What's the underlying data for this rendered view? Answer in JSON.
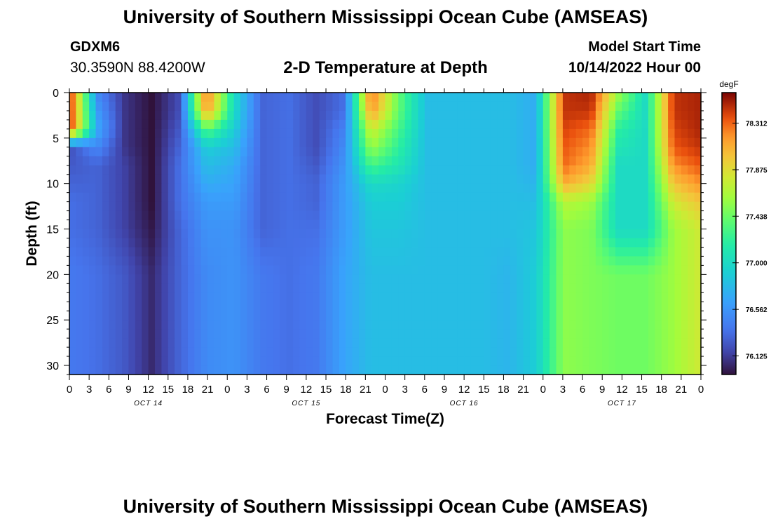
{
  "header": {
    "title": "University of Southern Mississippi Ocean Cube (AMSEAS)",
    "station_id": "GDXM6",
    "station_coords": "30.3590N  88.4200W",
    "subtitle": "2-D Temperature at Depth",
    "model_start_label": "Model Start Time",
    "model_start_value": "10/14/2022 Hour 00"
  },
  "footer": {
    "title_repeat": "University of Southern Mississippi Ocean Cube (AMSEAS)"
  },
  "chart_data": {
    "type": "heatmap",
    "title": "2-D Temperature at Depth",
    "xlabel": "Forecast Time(Z)",
    "ylabel": "Depth (ft)",
    "x_tick_labels": [
      "0",
      "3",
      "6",
      "9",
      "12",
      "15",
      "18",
      "21",
      "0",
      "3",
      "6",
      "9",
      "12",
      "15",
      "18",
      "21",
      "0",
      "3",
      "6",
      "9",
      "12",
      "15",
      "18",
      "21",
      "0",
      "3",
      "6",
      "9",
      "12",
      "15",
      "18",
      "21",
      "0"
    ],
    "date_labels": [
      {
        "label": "OCT 14",
        "hour": 12
      },
      {
        "label": "OCT 15",
        "hour": 36
      },
      {
        "label": "OCT 16",
        "hour": 60
      },
      {
        "label": "OCT 17",
        "hour": 84
      }
    ],
    "xlim_hours": [
      0,
      96
    ],
    "y_ticks": [
      0,
      5,
      10,
      15,
      20,
      25,
      30
    ],
    "ylim": [
      0,
      31
    ],
    "colorbar": {
      "unit": "degF",
      "ticks": [
        "78.312",
        "77.875",
        "77.438",
        "77.000",
        "76.562",
        "76.125"
      ],
      "tick_values": [
        78.312,
        77.875,
        77.438,
        77.0,
        76.562,
        76.125
      ],
      "vmin": 75.95,
      "vmax": 78.6
    },
    "depths_ft": [
      0,
      2,
      4,
      6,
      8,
      10,
      12,
      15,
      20,
      25,
      31
    ],
    "temperature_degF": [
      [
        78.5,
        76.5,
        76.1,
        75.95,
        76.2,
        78.3,
        77.0,
        76.3,
        76.35,
        76.2,
        76.35,
        78.3,
        77.4,
        76.8,
        76.8,
        76.8,
        76.8,
        76.7,
        78.45,
        78.5,
        77.6,
        77.0,
        78.45,
        78.5
      ],
      [
        78.5,
        76.6,
        76.1,
        75.95,
        76.2,
        78.2,
        77.0,
        76.3,
        76.35,
        76.2,
        76.35,
        78.2,
        77.4,
        76.8,
        76.8,
        76.8,
        76.8,
        76.7,
        78.45,
        78.45,
        77.4,
        77.0,
        78.45,
        78.5
      ],
      [
        78.5,
        76.7,
        76.1,
        75.95,
        76.25,
        77.4,
        76.9,
        76.3,
        76.35,
        76.2,
        76.45,
        77.8,
        77.3,
        76.8,
        76.8,
        76.8,
        76.8,
        76.7,
        78.4,
        78.3,
        77.2,
        77.0,
        78.4,
        78.5
      ],
      [
        76.2,
        76.5,
        76.1,
        75.95,
        76.3,
        76.9,
        76.8,
        76.3,
        76.35,
        76.2,
        76.5,
        77.6,
        77.2,
        76.8,
        76.8,
        76.8,
        76.8,
        76.7,
        78.35,
        78.2,
        77.1,
        77.0,
        78.35,
        78.45
      ],
      [
        76.25,
        76.3,
        76.15,
        75.95,
        76.35,
        76.8,
        76.7,
        76.3,
        76.35,
        76.25,
        76.55,
        77.3,
        77.1,
        76.8,
        76.8,
        76.8,
        76.8,
        76.7,
        78.3,
        78.1,
        77.0,
        77.0,
        78.2,
        78.35
      ],
      [
        76.3,
        76.3,
        76.15,
        75.95,
        76.35,
        76.7,
        76.65,
        76.3,
        76.35,
        76.3,
        76.6,
        77.0,
        76.95,
        76.8,
        76.8,
        76.8,
        76.8,
        76.75,
        78.1,
        77.9,
        77.0,
        77.0,
        78.0,
        78.2
      ],
      [
        76.35,
        76.3,
        76.15,
        75.95,
        76.35,
        76.6,
        76.6,
        76.3,
        76.35,
        76.3,
        76.6,
        76.9,
        76.9,
        76.8,
        76.8,
        76.8,
        76.8,
        76.8,
        77.7,
        77.6,
        77.0,
        77.0,
        77.8,
        78.0
      ],
      [
        76.35,
        76.3,
        76.15,
        75.98,
        76.3,
        76.55,
        76.55,
        76.3,
        76.35,
        76.35,
        76.6,
        76.85,
        76.85,
        76.8,
        76.8,
        76.8,
        76.8,
        76.85,
        77.55,
        77.5,
        77.0,
        77.0,
        77.6,
        77.8
      ],
      [
        76.4,
        76.35,
        76.25,
        76.05,
        76.3,
        76.5,
        76.55,
        76.4,
        76.35,
        76.4,
        76.65,
        76.8,
        76.8,
        76.8,
        76.8,
        76.8,
        76.75,
        76.9,
        77.55,
        77.5,
        77.45,
        77.45,
        77.6,
        77.8
      ],
      [
        76.4,
        76.35,
        76.25,
        76.05,
        76.3,
        76.5,
        76.55,
        76.4,
        76.35,
        76.4,
        76.65,
        76.8,
        76.8,
        76.8,
        76.8,
        76.8,
        76.75,
        76.9,
        77.55,
        77.5,
        77.45,
        77.45,
        77.6,
        77.8
      ],
      [
        76.4,
        76.35,
        76.25,
        76.05,
        76.3,
        76.5,
        76.55,
        76.4,
        76.35,
        76.4,
        76.65,
        76.8,
        76.8,
        76.8,
        76.8,
        76.8,
        76.75,
        76.9,
        77.55,
        77.5,
        77.45,
        77.45,
        77.6,
        77.8
      ]
    ]
  }
}
